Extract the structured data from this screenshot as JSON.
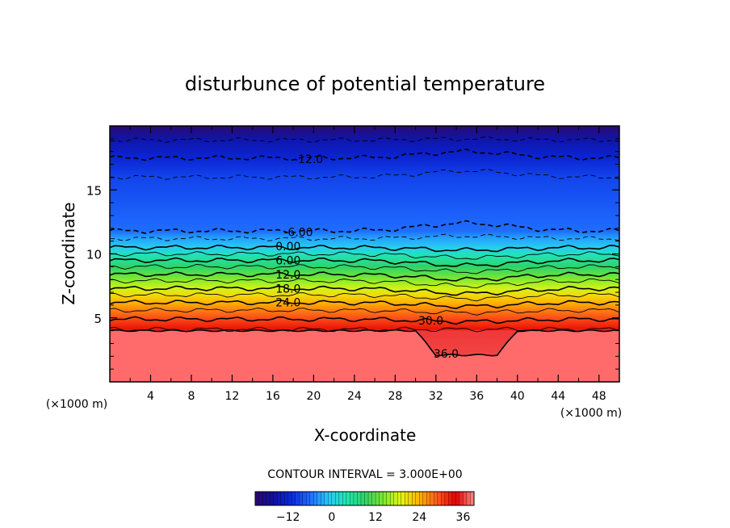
{
  "chart_data": {
    "type": "heatmap",
    "title": "disturbunce of potential temperature",
    "xlabel": "X-coordinate",
    "ylabel": "Z-coordinate",
    "x_unit": "(×1000 m)",
    "z_unit": "(×1000 m)",
    "xlim": [
      0,
      50
    ],
    "ylim": [
      0,
      20
    ],
    "x_ticks": [
      4,
      8,
      12,
      16,
      20,
      24,
      28,
      32,
      36,
      40,
      44,
      48
    ],
    "y_ticks": [
      5,
      10,
      15
    ],
    "contour_interval_text": "CONTOUR INTERVAL = 3.000E+00",
    "contour_interval": 3,
    "value_range": [
      -21,
      39
    ],
    "colorbar": {
      "ticks": [
        -12,
        0,
        12,
        24,
        36
      ],
      "colors": [
        "#2a0a6e",
        "#1010a0",
        "#0a2adf",
        "#1f6cff",
        "#28c8ff",
        "#20e6b0",
        "#2ed36a",
        "#7be82c",
        "#e6f514",
        "#ffb300",
        "#ff5a1e",
        "#e40000",
        "#ff8a8a"
      ]
    },
    "contour_labels": [
      {
        "text": "-12.0",
        "x": 19.5,
        "z": 17.4
      },
      {
        "text": "-6.00",
        "x": 18.5,
        "z": 11.7
      },
      {
        "text": "0.00",
        "x": 17.5,
        "z": 10.6
      },
      {
        "text": "6.00",
        "x": 17.5,
        "z": 9.5
      },
      {
        "text": "12.0",
        "x": 17.5,
        "z": 8.4
      },
      {
        "text": "18.0",
        "x": 17.5,
        "z": 7.3
      },
      {
        "text": "24.0",
        "x": 17.5,
        "z": 6.2
      },
      {
        "text": "30.0",
        "x": 31.5,
        "z": 4.8
      },
      {
        "text": "36.0",
        "x": 33.0,
        "z": 2.2
      }
    ],
    "contour_levels": [
      {
        "value": -15,
        "z": 18.9,
        "bump": 0.1,
        "dashed": true
      },
      {
        "value": -12,
        "z": 17.5,
        "bump": 0.5,
        "dashed": true
      },
      {
        "value": -9,
        "z": 16.0,
        "bump": 0.5,
        "dashed": true
      },
      {
        "value": -6,
        "z": 11.8,
        "bump": 0.6,
        "dashed": true
      },
      {
        "value": -3,
        "z": 11.2,
        "bump": 0.2,
        "dashed": true
      },
      {
        "value": 0,
        "z": 10.5,
        "bump": -0.2,
        "dashed": false
      },
      {
        "value": 3,
        "z": 10.0,
        "bump": -0.3,
        "dashed": false
      },
      {
        "value": 6,
        "z": 9.5,
        "bump": -0.4,
        "dashed": false
      },
      {
        "value": 9,
        "z": 9.0,
        "bump": -0.4,
        "dashed": false
      },
      {
        "value": 12,
        "z": 8.4,
        "bump": -0.4,
        "dashed": false
      },
      {
        "value": 15,
        "z": 7.9,
        "bump": -0.4,
        "dashed": false
      },
      {
        "value": 18,
        "z": 7.3,
        "bump": -0.4,
        "dashed": false
      },
      {
        "value": 21,
        "z": 6.8,
        "bump": -0.3,
        "dashed": false
      },
      {
        "value": 24,
        "z": 6.2,
        "bump": -0.3,
        "dashed": false
      },
      {
        "value": 27,
        "z": 5.6,
        "bump": -0.2,
        "dashed": false
      },
      {
        "value": 30,
        "z": 4.9,
        "bump": -0.2,
        "dashed": false
      },
      {
        "value": 33,
        "z": 4.1,
        "bump": 0,
        "dashed": false
      },
      {
        "value": 36,
        "z": 4.0,
        "bump": -1.9,
        "dashed": false
      }
    ],
    "grid": false,
    "legend": "colorbar-bottom"
  }
}
